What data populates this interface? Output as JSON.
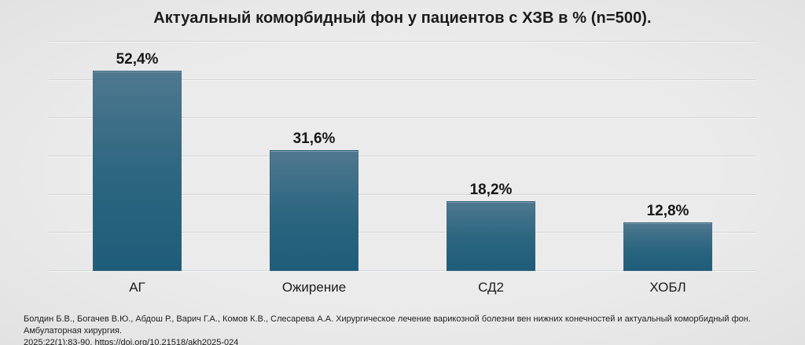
{
  "title": "Актуальный коморбидный фон у пациентов с ХЗВ в % (n=500).",
  "chart_data": {
    "type": "bar",
    "title": "Актуальный коморбидный фон у пациентов с ХЗВ в % (n=500).",
    "categories": [
      "АГ",
      "Ожирение",
      "СД2",
      "ХОБЛ"
    ],
    "values": [
      52.4,
      31.6,
      18.2,
      12.8
    ],
    "value_labels": [
      "52,4%",
      "31,6%",
      "18,2%",
      "12,8%"
    ],
    "xlabel": "",
    "ylabel": "",
    "ylim": [
      0,
      60
    ],
    "grid_step": 10,
    "grid": true,
    "legend": false,
    "bar_color_top": "#4f7890",
    "bar_color_mid": "#2b657f",
    "bar_color_bottom": "#1e5d7a"
  },
  "footer": {
    "citation_lines": [
      "Болдин Б.В., Богачев В.Ю., Абдош Р., Варич Г.А., Комов К.В., Слесарева А.А. Хирургическое лечение варикозной болезни вен нижних конечностей и актуальный коморбидный фон. Амбулаторная хирургия.",
      "2025;22(1):83-90. https://doi.org/10.21518/akh2025-024"
    ]
  },
  "colors": {
    "background": "#e9e9e9",
    "text": "#1b1b1b",
    "gridline": "#d2d2d2"
  }
}
